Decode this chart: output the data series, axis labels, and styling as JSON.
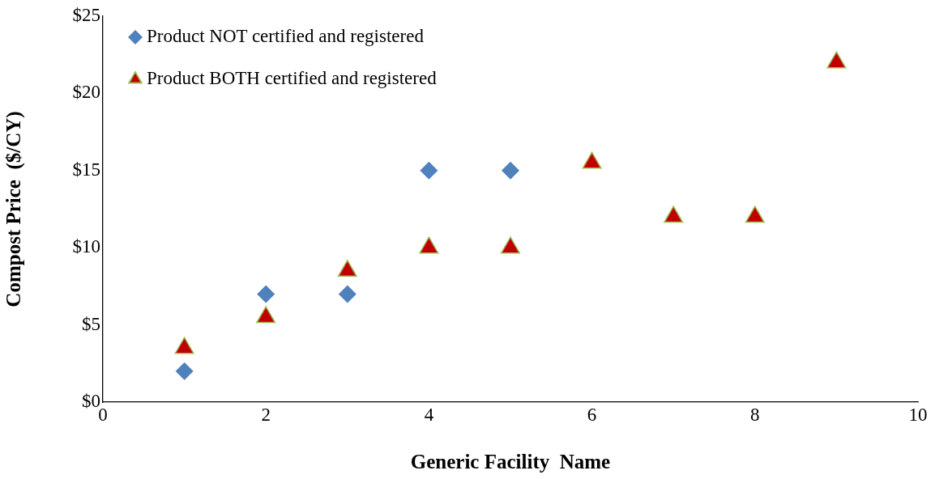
{
  "chart_data": {
    "type": "scatter",
    "xlabel": "Generic Facility  Name",
    "ylabel": "Compost Price  ($/CY)",
    "xlim": [
      0,
      10
    ],
    "xticks": [
      0,
      2,
      4,
      6,
      8,
      10
    ],
    "ylim": [
      0,
      25
    ],
    "yticks": [
      {
        "value": 0,
        "label": "$0"
      },
      {
        "value": 5,
        "label": "$5"
      },
      {
        "value": 10,
        "label": "$10"
      },
      {
        "value": 15,
        "label": "$15"
      },
      {
        "value": 20,
        "label": "$20"
      },
      {
        "value": 25,
        "label": "$25"
      }
    ],
    "grid": false,
    "legend": "top left",
    "series": [
      {
        "name": "Product NOT certified and registered",
        "color": "#4f81bd",
        "marker": "diamond",
        "x": [
          1,
          2,
          3,
          4,
          5
        ],
        "values": [
          2,
          7,
          7,
          15,
          15
        ]
      },
      {
        "name": "Product BOTH certified and registered",
        "color": "#c00000",
        "marker": "triangle",
        "x": [
          1,
          2,
          3,
          4,
          5,
          6,
          7,
          8,
          9
        ],
        "values": [
          3.5,
          5.5,
          8.5,
          10,
          10,
          15.5,
          12,
          12,
          22
        ]
      }
    ]
  }
}
